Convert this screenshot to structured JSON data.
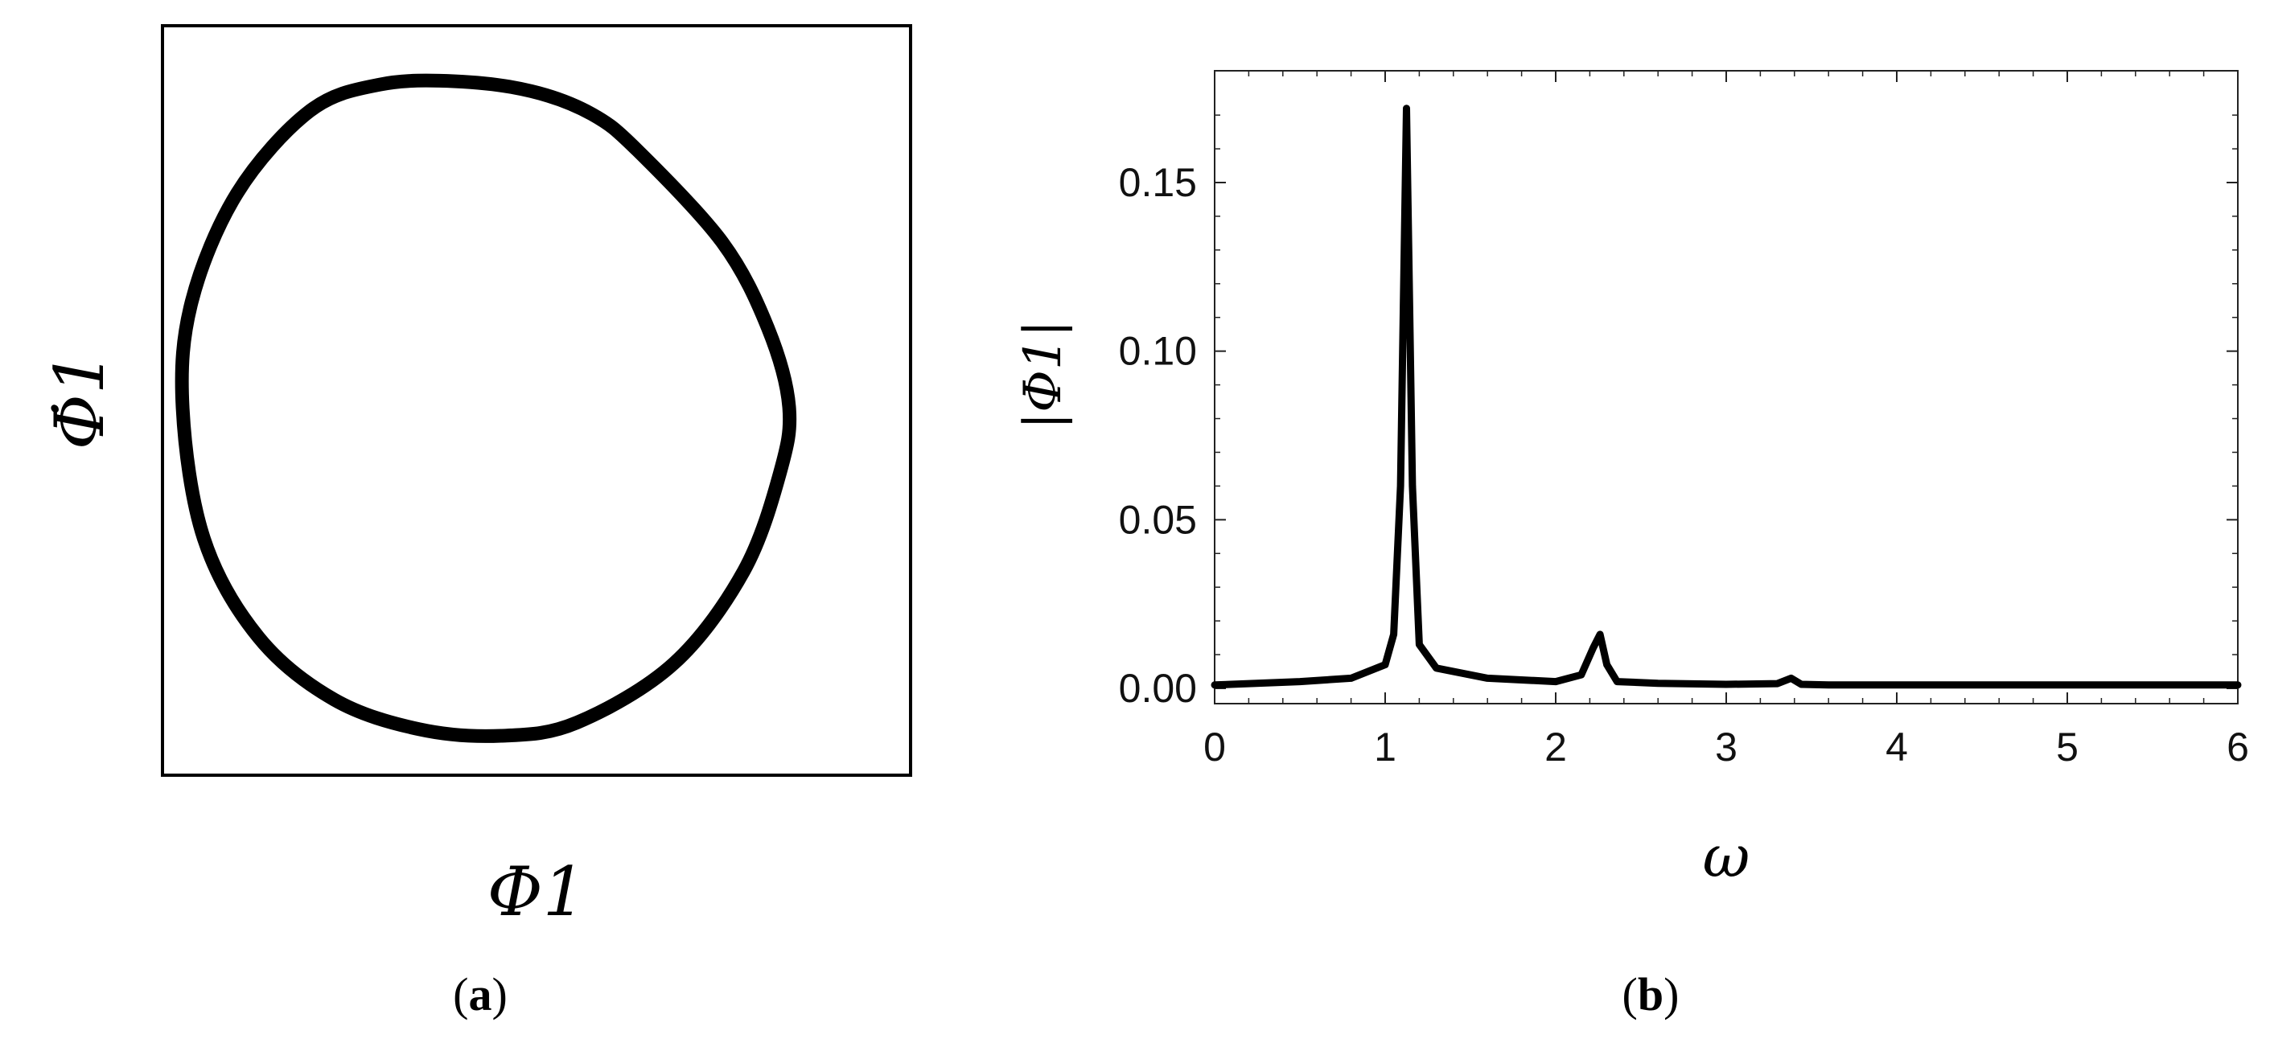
{
  "chart_data": [
    {
      "panel": "a",
      "type": "line",
      "caption": "(a)",
      "caption_letter": "a",
      "xlabel": "Φ1",
      "ylabel": "Φ̇1",
      "axes_ticks": false,
      "grid": false,
      "curve": "closed limit cycle",
      "x": [
        0.5,
        0.35,
        0.15,
        -0.1,
        -0.35,
        -0.58,
        -0.82,
        -0.97,
        -1.0,
        -0.93,
        -0.75,
        -0.5,
        -0.22,
        0.05,
        0.3,
        0.62,
        0.85,
        0.97,
        1.0,
        0.93,
        0.78,
        0.5
      ],
      "y": [
        0.78,
        0.89,
        0.96,
        0.99,
        0.98,
        0.9,
        0.65,
        0.32,
        0.0,
        -0.4,
        -0.7,
        -0.89,
        -0.98,
        -1.0,
        -0.96,
        -0.78,
        -0.5,
        -0.2,
        0.0,
        0.24,
        0.5,
        0.78
      ]
    },
    {
      "panel": "b",
      "type": "line",
      "caption": "(b)",
      "caption_letter": "b",
      "xlabel": "ω",
      "ylabel": "|Φ1|",
      "xlim": [
        0,
        6
      ],
      "ylim": [
        0,
        0.18
      ],
      "xticks": [
        0,
        1,
        2,
        3,
        4,
        5,
        6
      ],
      "xtick_labels": [
        "0",
        "1",
        "2",
        "3",
        "4",
        "5",
        "6"
      ],
      "yticks": [
        0,
        0.05,
        0.1,
        0.15
      ],
      "ytick_labels": [
        "0.00",
        "0.05",
        "0.10",
        "0.15"
      ],
      "grid": false,
      "x": [
        0,
        0.5,
        0.8,
        1.0,
        1.05,
        1.09,
        1.125,
        1.16,
        1.2,
        1.3,
        1.6,
        2.0,
        2.15,
        2.22,
        2.26,
        2.3,
        2.36,
        2.6,
        3.0,
        3.3,
        3.38,
        3.44,
        3.6,
        4.5,
        6.0
      ],
      "y": [
        0.001,
        0.002,
        0.003,
        0.007,
        0.016,
        0.06,
        0.172,
        0.06,
        0.013,
        0.006,
        0.003,
        0.002,
        0.004,
        0.012,
        0.016,
        0.007,
        0.002,
        0.0015,
        0.0012,
        0.0014,
        0.003,
        0.0012,
        0.001,
        0.001,
        0.001
      ]
    }
  ]
}
